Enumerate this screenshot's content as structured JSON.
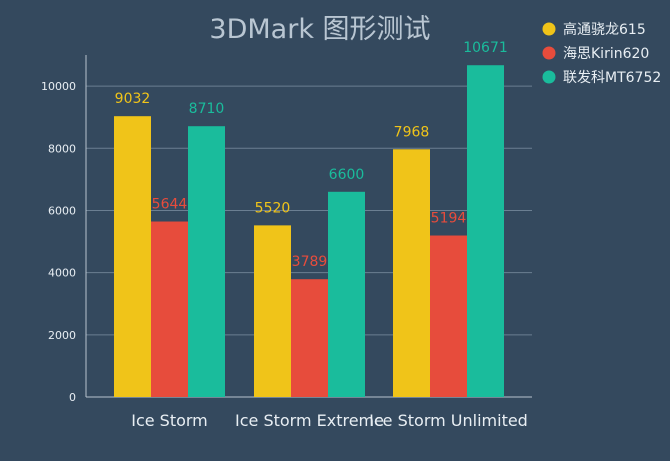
{
  "colors": {
    "background": "#34495e",
    "text": "#e8eef3",
    "grid": "#6b7f92",
    "axis": "#b8c4cf"
  },
  "chart_data": {
    "type": "bar",
    "title": "3DMark 图形测试",
    "categories": [
      "Ice Storm",
      "Ice Storm Extreme",
      "Ice Storm Unlimited"
    ],
    "series": [
      {
        "name": "高通骁龙615",
        "color": "#f0c419",
        "values": [
          9032,
          5520,
          7968
        ]
      },
      {
        "name": "海思Kirin620",
        "color": "#e74c3c",
        "values": [
          5644,
          3789,
          5194
        ]
      },
      {
        "name": "联发科MT6752",
        "color": "#1abc9c",
        "values": [
          8710,
          6600,
          10671
        ]
      }
    ],
    "ylim": [
      0,
      11000
    ],
    "yticks": [
      0,
      2000,
      4000,
      6000,
      8000,
      10000
    ],
    "grid": true,
    "legend_position": "top-right",
    "data_labels": true,
    "xlabel": "",
    "ylabel": ""
  }
}
